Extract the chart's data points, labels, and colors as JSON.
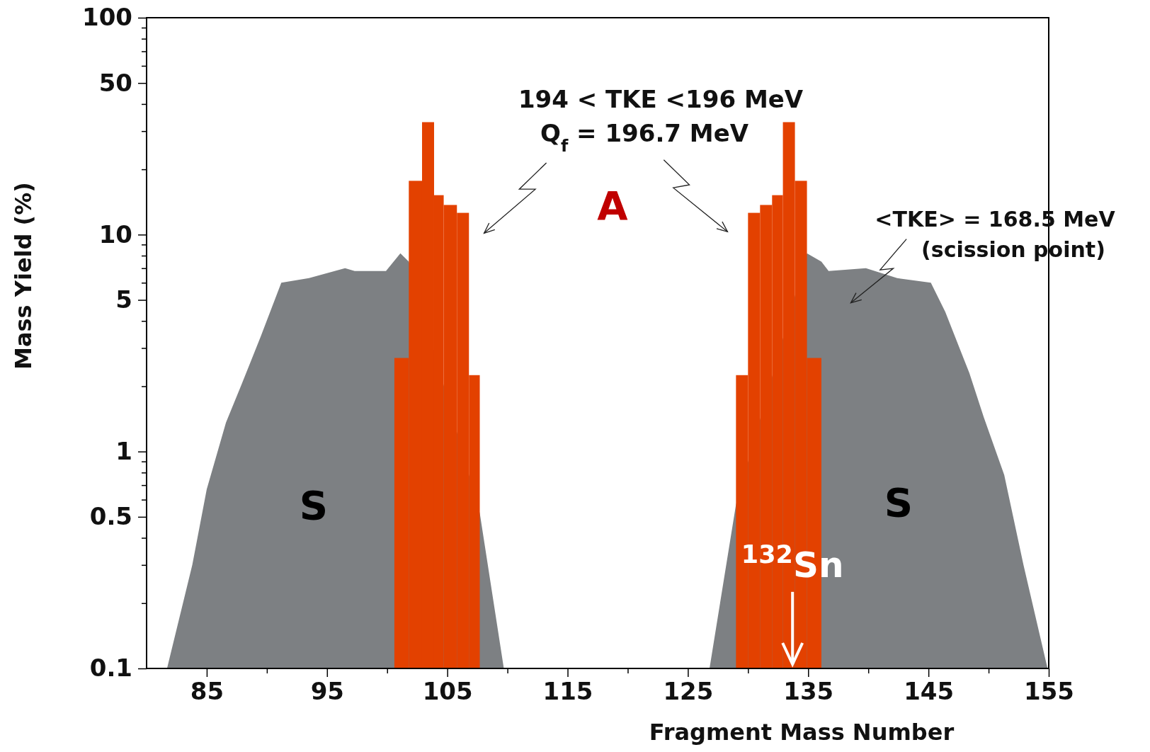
{
  "chart_data": {
    "type": "histogram",
    "xlabel": "Fragment Mass Number",
    "ylabel": "Mass Yield (%)",
    "log": "y",
    "xlim": [
      80,
      155
    ],
    "ylim": [
      0.1,
      100
    ],
    "xticks": [
      85,
      {
        "value": 90,
        "label": null
      },
      95,
      {
        "value": 100,
        "label": null
      },
      105,
      {
        "value": 110,
        "label": null
      },
      115,
      {
        "value": 120,
        "label": null
      },
      125,
      {
        "value": 130,
        "label": null
      },
      135,
      {
        "value": 140,
        "label": null
      },
      145,
      {
        "value": 150,
        "label": null
      },
      155
    ],
    "yticks": [
      0.1,
      {
        "value": 0.2,
        "label": null
      },
      {
        "value": 0.3,
        "label": null
      },
      {
        "value": 0.4,
        "label": null
      },
      0.5,
      {
        "value": 0.6,
        "label": null
      },
      {
        "value": 0.7,
        "label": null
      },
      {
        "value": 0.8,
        "label": null
      },
      {
        "value": 0.9,
        "label": null
      },
      1,
      {
        "value": 2,
        "label": null
      },
      {
        "value": 3,
        "label": null
      },
      {
        "value": 4,
        "label": null
      },
      5,
      {
        "value": 6,
        "label": null
      },
      {
        "value": 7,
        "label": null
      },
      {
        "value": 8,
        "label": null
      },
      {
        "value": 9,
        "label": null
      },
      10,
      {
        "value": 20,
        "label": null
      },
      {
        "value": 30,
        "label": null
      },
      {
        "value": 40,
        "label": null
      },
      50,
      {
        "value": 60,
        "label": null
      },
      {
        "value": 70,
        "label": null
      },
      {
        "value": 80,
        "label": null
      },
      {
        "value": 90,
        "label": null
      },
      100
    ],
    "series": [
      {
        "type": "area",
        "color": "#7d8083",
        "x": [
          81.7,
          83.8,
          85.0,
          86.6,
          87.9,
          89.5,
          91.2,
          93.5,
          96.5,
          97.3,
          99.9,
          101.1,
          101.8,
          107.7,
          109.7
        ],
        "values": [
          0.1,
          0.3,
          0.67,
          1.36,
          2.04,
          3.4,
          6.0,
          6.3,
          7.0,
          6.8,
          6.8,
          8.2,
          7.5,
          0.52,
          0.1
        ]
      },
      {
        "type": "area",
        "color": "#7d8083",
        "x": [
          126.8,
          129.0,
          134.9,
          136.1,
          136.7,
          139.8,
          142.4,
          145.2,
          146.4,
          148.4,
          149.6,
          151.3,
          152.9,
          154.9
        ],
        "values": [
          0.1,
          0.57,
          8.2,
          7.5,
          6.8,
          7.0,
          6.3,
          6.0,
          4.4,
          2.3,
          1.44,
          0.78,
          0.3,
          0.1
        ]
      },
      {
        "color": "#e34100",
        "bins": [
          100.6,
          101.8,
          102.9,
          103.9,
          104.7,
          105.8,
          106.8,
          107.7,
          129.0,
          130.0,
          131.0,
          132.0,
          132.9,
          133.9,
          134.9,
          136.1
        ],
        "values": [
          2.7,
          17.7,
          33,
          15.2,
          13.7,
          12.6,
          2.25,
          null,
          2.25,
          12.6,
          13.7,
          15.2,
          33,
          17.7,
          2.7
        ]
      }
    ],
    "annotations": [
      "194 < TKE <196 MeV",
      "Q$_{f}$ = 196.7 MeV",
      "A",
      "<TKE> = 168.5 MeV",
      "(scission point)",
      "S",
      "S",
      {
        "text": "$^{132}$Sn",
        "x": 133.7,
        "y": 0.3
      }
    ]
  }
}
